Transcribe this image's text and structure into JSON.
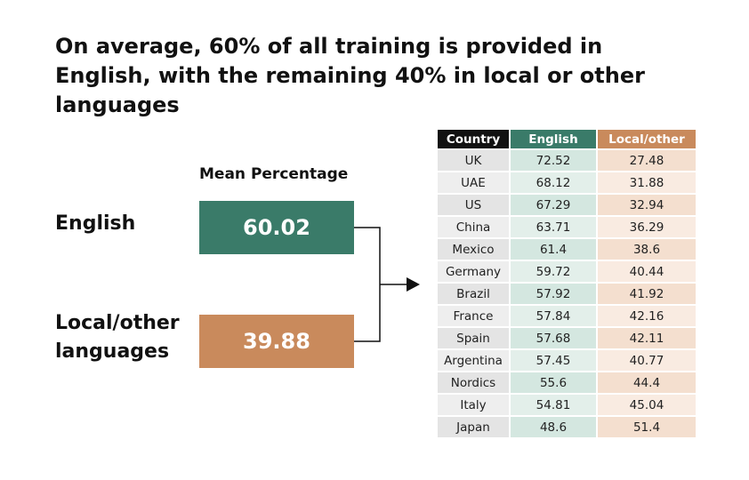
{
  "title": "On average, 60% of all training is provided in English, with the remaining 40% in local or other languages",
  "summary": {
    "heading": "Mean Percentage",
    "items": [
      {
        "label": "English",
        "value": 60.02
      },
      {
        "label": "Local/other languages",
        "value": 39.88
      }
    ]
  },
  "table": {
    "columns": [
      "Country",
      "English",
      "Local/other"
    ],
    "rows": [
      [
        "UK",
        72.52,
        27.48
      ],
      [
        "UAE",
        68.12,
        31.88
      ],
      [
        "US",
        67.29,
        32.94
      ],
      [
        "China",
        63.71,
        36.29
      ],
      [
        "Mexico",
        61.4,
        38.6
      ],
      [
        "Germany",
        59.72,
        40.44
      ],
      [
        "Brazil",
        57.92,
        41.92
      ],
      [
        "France",
        57.84,
        42.16
      ],
      [
        "Spain",
        57.68,
        42.11
      ],
      [
        "Argentina",
        57.45,
        40.77
      ],
      [
        "Nordics",
        55.6,
        44.4
      ],
      [
        "Italy",
        54.81,
        45.04
      ],
      [
        "Japan",
        48.6,
        51.4
      ]
    ]
  }
}
